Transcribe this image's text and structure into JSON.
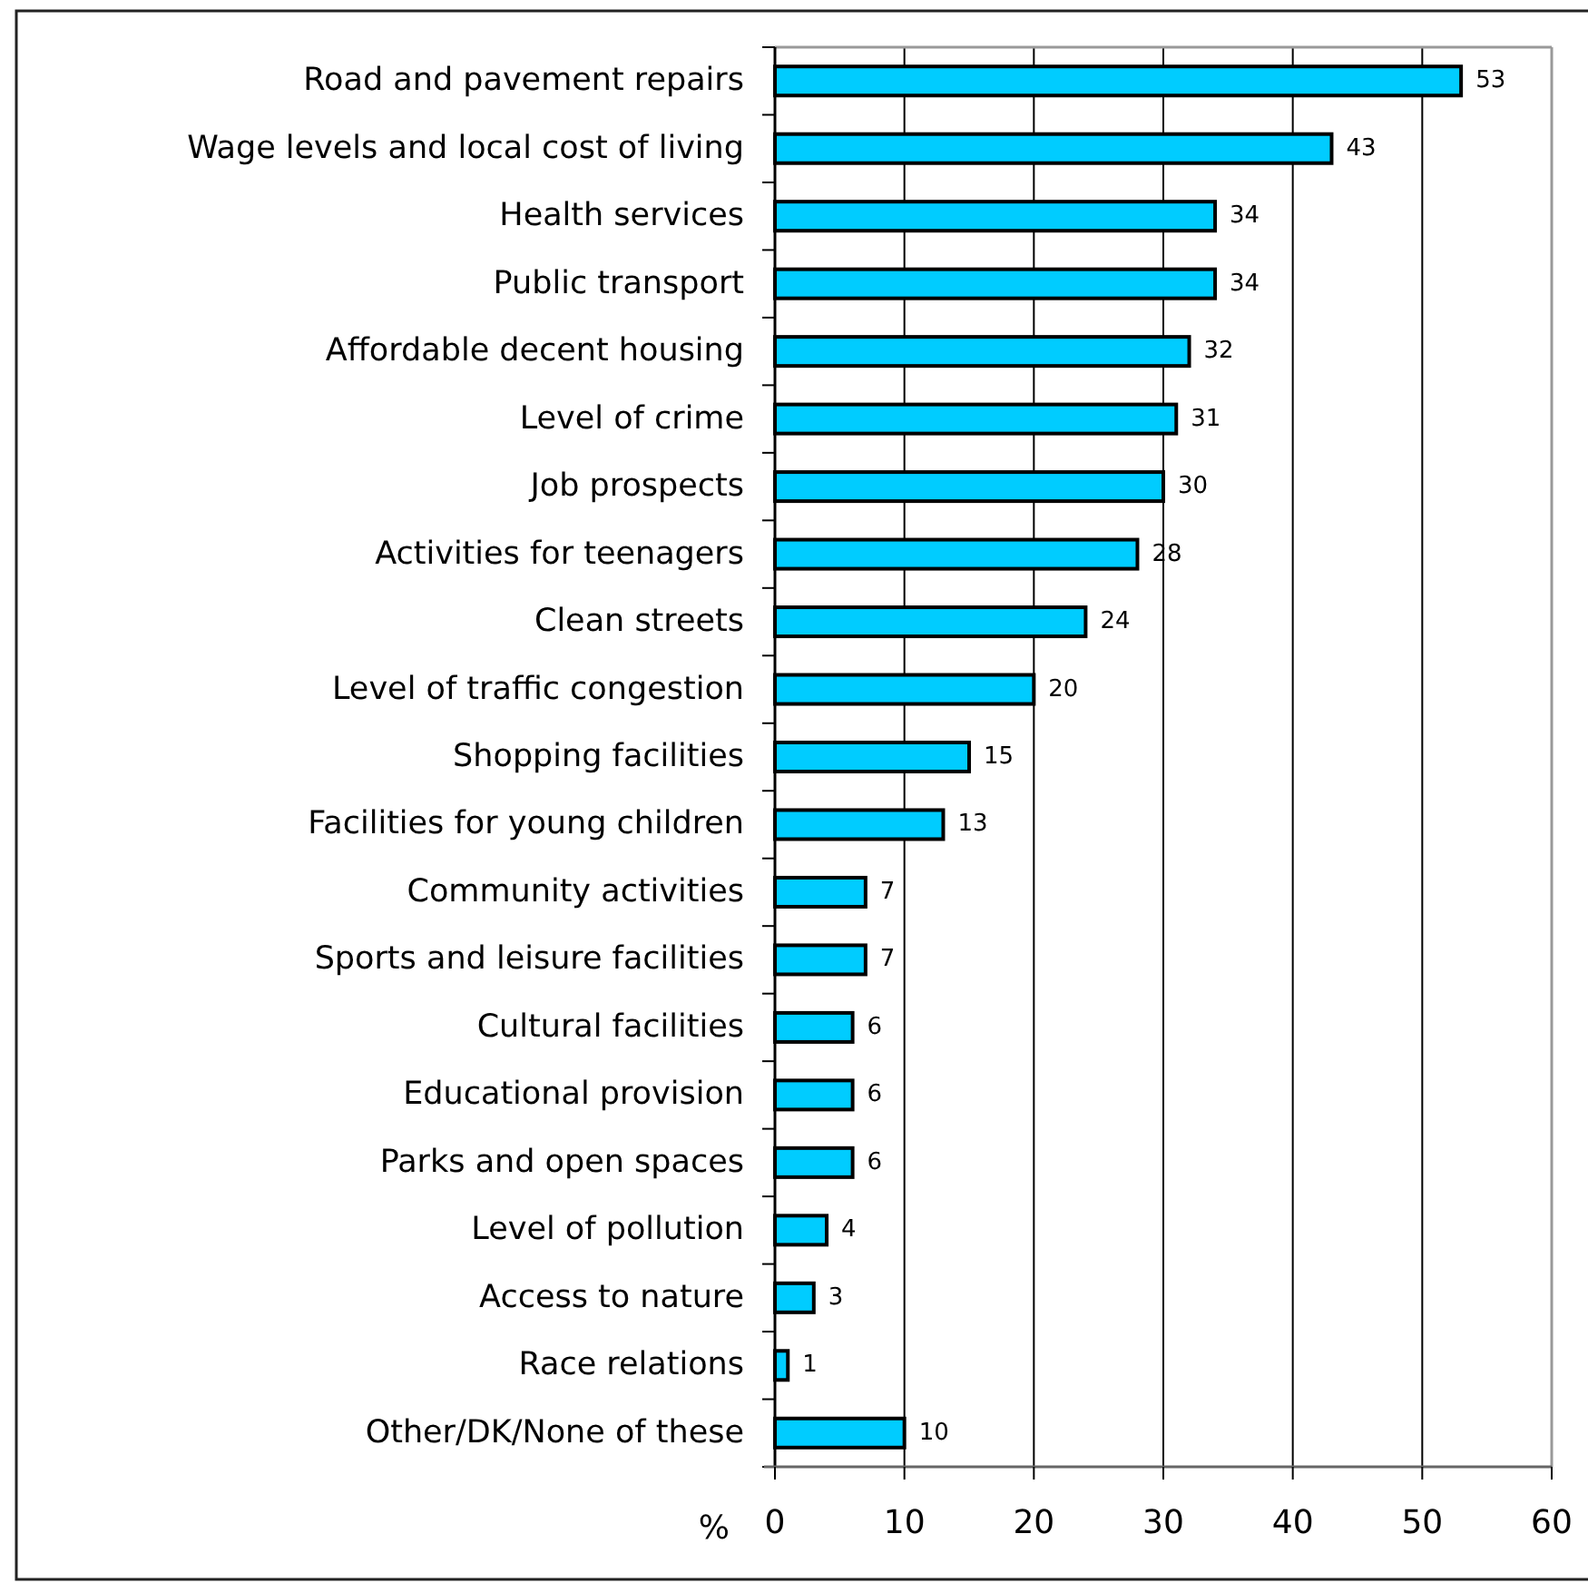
{
  "chart_data": {
    "type": "bar",
    "orientation": "horizontal",
    "categories": [
      "Road and pavement repairs",
      "Wage levels and local cost of living",
      "Health services",
      "Public transport",
      "Affordable decent housing",
      "Level of crime",
      "Job prospects",
      "Activities for teenagers",
      "Clean streets",
      "Level of traffic congestion",
      "Shopping facilities",
      "Facilities for young children",
      "Community activities",
      "Sports and leisure facilities",
      "Cultural facilities",
      "Educational provision",
      "Parks and open spaces",
      "Level of pollution",
      "Access to nature",
      "Race relations",
      "Other/DK/None of these"
    ],
    "values": [
      53,
      43,
      34,
      34,
      32,
      31,
      30,
      28,
      24,
      20,
      15,
      13,
      7,
      7,
      6,
      6,
      6,
      4,
      3,
      1,
      10
    ],
    "color": "#00ccff",
    "xlim": [
      0,
      60
    ],
    "xticks": [
      0,
      10,
      20,
      30,
      40,
      50,
      60
    ],
    "xlabel": "%",
    "grid": "x",
    "data_labels": true
  }
}
